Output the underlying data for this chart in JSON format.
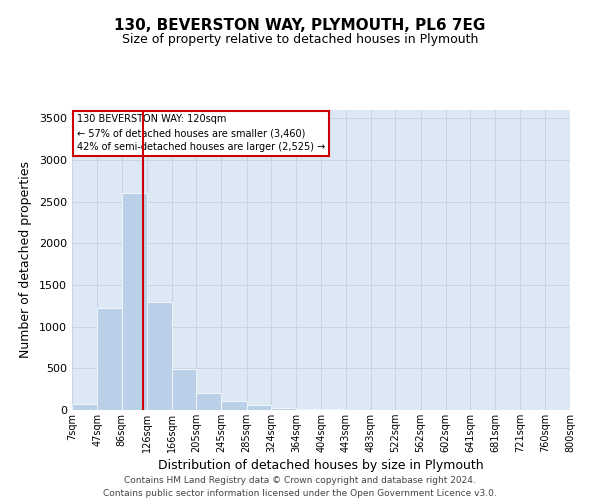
{
  "title_line1": "130, BEVERSTON WAY, PLYMOUTH, PL6 7EG",
  "title_line2": "Size of property relative to detached houses in Plymouth",
  "xlabel": "Distribution of detached houses by size in Plymouth",
  "ylabel": "Number of detached properties",
  "footer_line1": "Contains HM Land Registry data © Crown copyright and database right 2024.",
  "footer_line2": "Contains public sector information licensed under the Open Government Licence v3.0.",
  "annotation_line1": "130 BEVERSTON WAY: 120sqm",
  "annotation_line2": "← 57% of detached houses are smaller (3,460)",
  "annotation_line3": "42% of semi-detached houses are larger (2,525) →",
  "bar_color": "#bad0e8",
  "bar_edge_color": "#ffffff",
  "grid_color": "#c8d4e4",
  "bg_color": "#dce8f4",
  "vline_color": "#cc0000",
  "vline_x": 120,
  "categories": [
    "7sqm",
    "47sqm",
    "86sqm",
    "126sqm",
    "166sqm",
    "205sqm",
    "245sqm",
    "285sqm",
    "324sqm",
    "364sqm",
    "404sqm",
    "443sqm",
    "483sqm",
    "522sqm",
    "562sqm",
    "602sqm",
    "641sqm",
    "681sqm",
    "721sqm",
    "760sqm",
    "800sqm"
  ],
  "bin_edges": [
    7,
    47,
    86,
    126,
    166,
    205,
    245,
    285,
    324,
    364,
    404,
    443,
    483,
    522,
    562,
    602,
    641,
    681,
    721,
    760,
    800
  ],
  "values": [
    75,
    1220,
    2600,
    1300,
    490,
    210,
    105,
    55,
    30,
    15,
    8,
    5,
    3,
    2,
    1,
    1,
    1,
    1,
    1,
    1,
    1
  ],
  "ylim": [
    0,
    3600
  ],
  "yticks": [
    0,
    500,
    1000,
    1500,
    2000,
    2500,
    3000,
    3500
  ],
  "annotation_box_color": "#ffffff",
  "annotation_box_edge": "#cc0000",
  "figwidth": 6.0,
  "figheight": 5.0,
  "dpi": 100
}
